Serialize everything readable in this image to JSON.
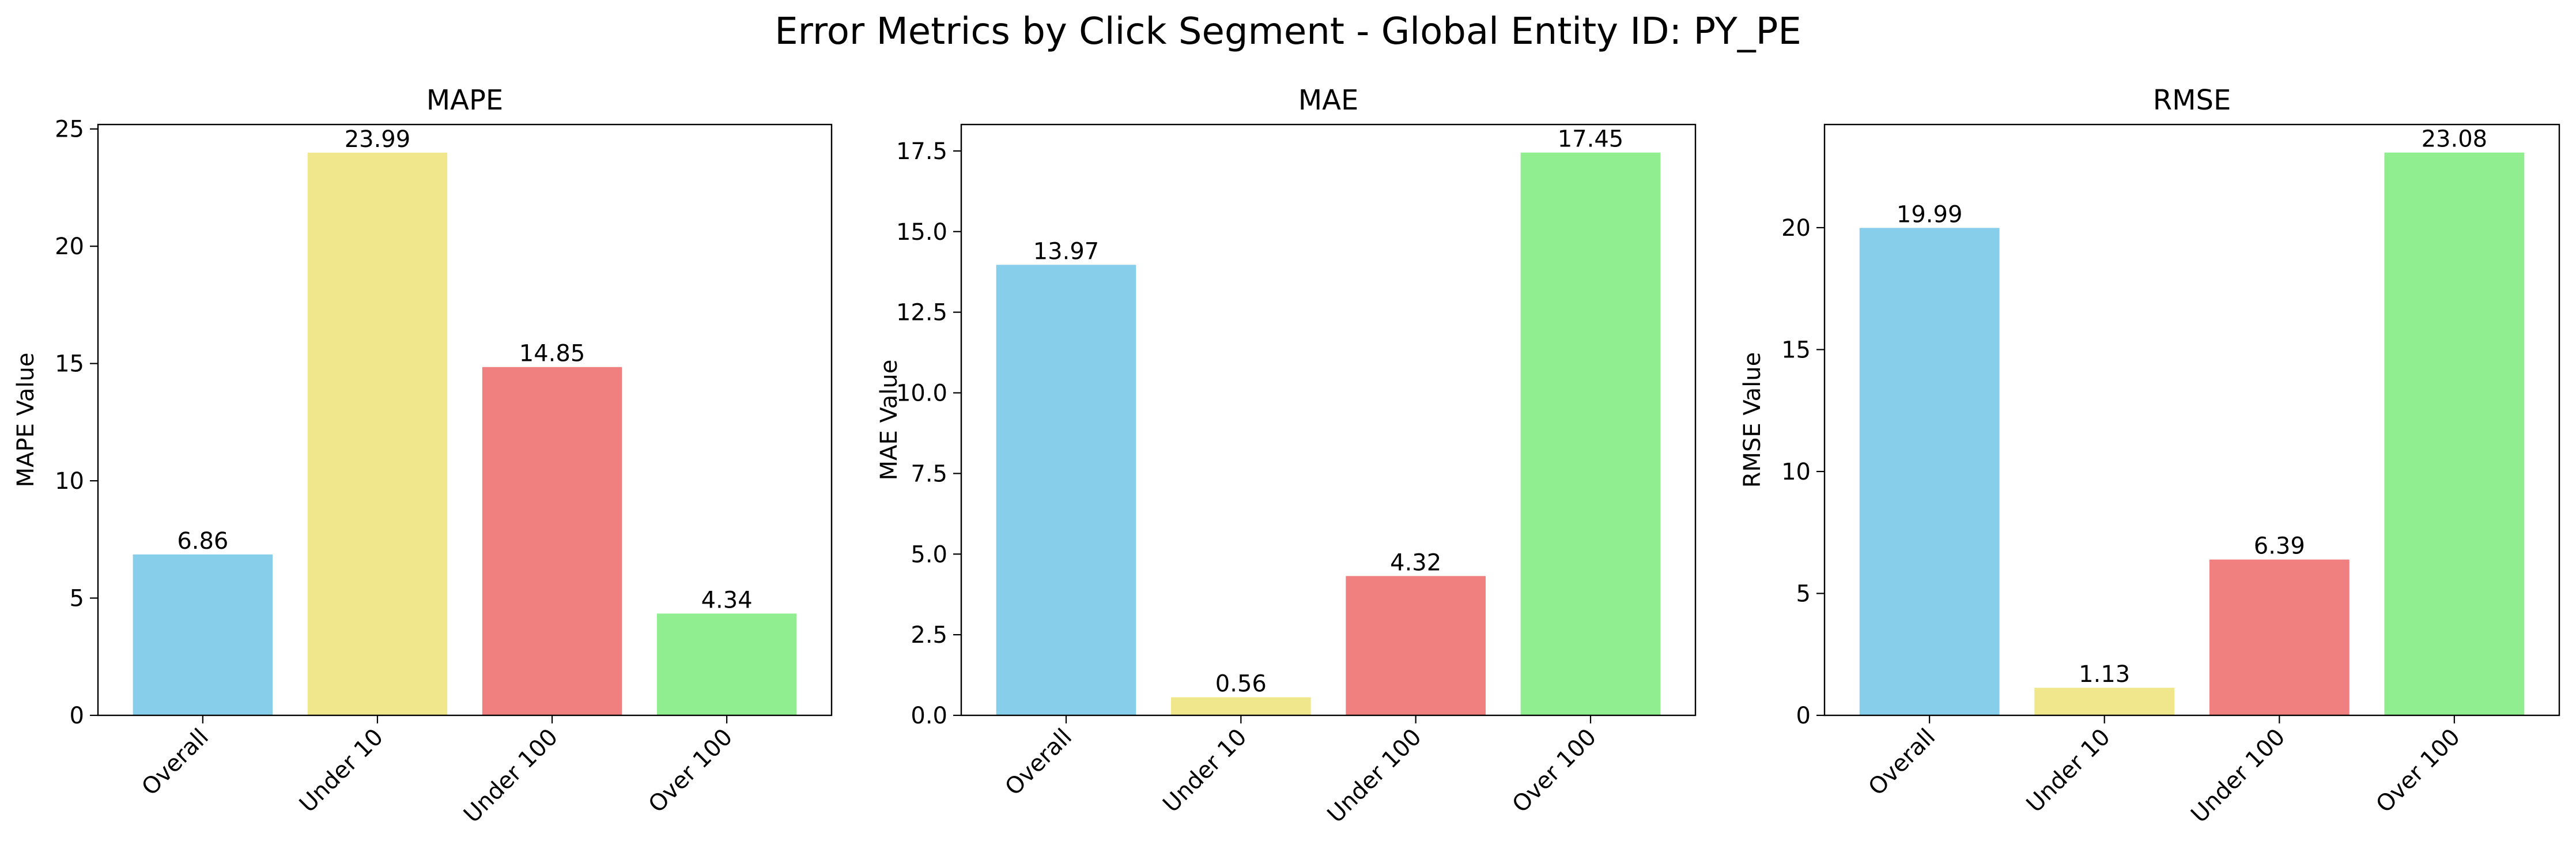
{
  "figure": {
    "suptitle": "Error Metrics by Click Segment - Global Entity ID: PY_PE"
  },
  "chart_data": [
    {
      "type": "bar",
      "title": "MAPE",
      "xlabel": "",
      "ylabel": "MAPE Value",
      "categories": [
        "Overall",
        "Under 10",
        "Under 100",
        "Over 100"
      ],
      "values": [
        6.86,
        23.99,
        14.85,
        4.34
      ],
      "value_labels": [
        "6.86",
        "23.99",
        "14.85",
        "4.34"
      ],
      "bar_colors": [
        "#87ceeb",
        "#f0e68c",
        "#f08080",
        "#90ee90"
      ],
      "ylim": [
        0,
        25.19
      ],
      "yticks": [
        0,
        5,
        10,
        15,
        20,
        25
      ],
      "ytick_labels": [
        "0",
        "5",
        "10",
        "15",
        "20",
        "25"
      ],
      "grid": false,
      "xtick_rotation": 45
    },
    {
      "type": "bar",
      "title": "MAE",
      "xlabel": "",
      "ylabel": "MAE Value",
      "categories": [
        "Overall",
        "Under 10",
        "Under 100",
        "Over 100"
      ],
      "values": [
        13.97,
        0.56,
        4.32,
        17.45
      ],
      "value_labels": [
        "13.97",
        "0.56",
        "4.32",
        "17.45"
      ],
      "bar_colors": [
        "#87ceeb",
        "#f0e68c",
        "#f08080",
        "#90ee90"
      ],
      "ylim": [
        0,
        18.32
      ],
      "yticks": [
        0,
        2.5,
        5,
        7.5,
        10,
        12.5,
        15,
        17.5
      ],
      "ytick_labels": [
        "0.0",
        "2.5",
        "5.0",
        "7.5",
        "10.0",
        "12.5",
        "15.0",
        "17.5"
      ],
      "grid": false,
      "xtick_rotation": 45
    },
    {
      "type": "bar",
      "title": "RMSE",
      "xlabel": "",
      "ylabel": "RMSE Value",
      "categories": [
        "Overall",
        "Under 10",
        "Under 100",
        "Over 100"
      ],
      "values": [
        19.99,
        1.13,
        6.39,
        23.08
      ],
      "value_labels": [
        "19.99",
        "1.13",
        "6.39",
        "23.08"
      ],
      "bar_colors": [
        "#87ceeb",
        "#f0e68c",
        "#f08080",
        "#90ee90"
      ],
      "ylim": [
        0,
        24.23
      ],
      "yticks": [
        0,
        5,
        10,
        15,
        20
      ],
      "ytick_labels": [
        "0",
        "5",
        "10",
        "15",
        "20"
      ],
      "grid": false,
      "xtick_rotation": 45
    }
  ]
}
